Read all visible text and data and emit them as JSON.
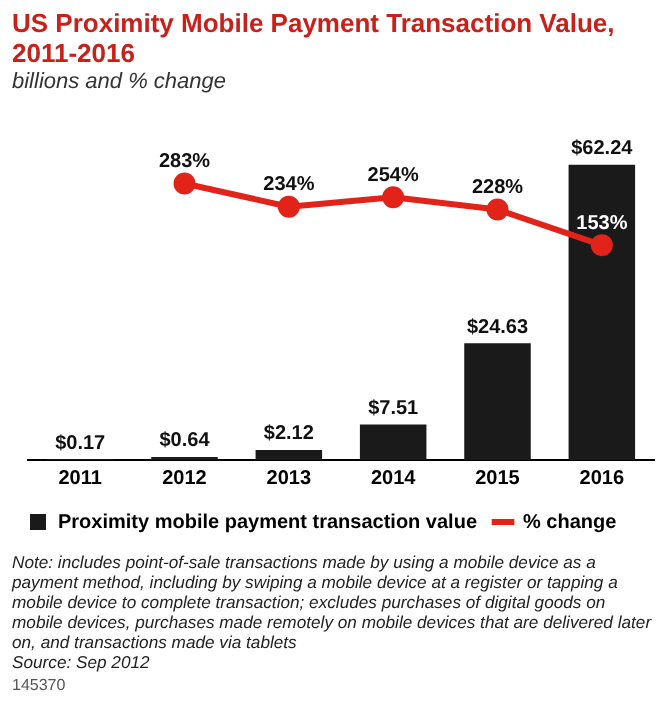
{
  "chart_data": {
    "type": "bar",
    "title": "US Proximity Mobile Payment Transaction Value, 2011-2016",
    "subtitle": "billions and % change",
    "categories": [
      "2011",
      "2012",
      "2013",
      "2014",
      "2015",
      "2016"
    ],
    "series": [
      {
        "name": "Proximity mobile payment transaction value",
        "type": "bar",
        "color": "#1a1a1a",
        "values": [
          0.17,
          0.64,
          2.12,
          7.51,
          24.63,
          62.24
        ],
        "value_labels": [
          "$0.17",
          "$0.64",
          "$2.12",
          "$7.51",
          "$24.63",
          "$62.24"
        ]
      },
      {
        "name": "% change",
        "type": "line",
        "axis": "y2",
        "color": "#e2231a",
        "values": [
          null,
          283,
          234,
          254,
          228,
          153
        ],
        "value_labels": [
          null,
          "283%",
          "234%",
          "254%",
          "228%",
          "153%"
        ]
      }
    ],
    "tick_labels": "x",
    "grid": false,
    "legend": "bottom",
    "marker": "circle",
    "annotations": [
      "Note: includes point-of-sale transactions made by using a mobile device as a payment method, including by swiping a mobile device at a register or tapping a mobile device to complete transaction; excludes purchases of digital goods on mobile devices, purchases made remotely on mobile devices that are delivered later on, and transactions made via tablets",
      "Source: Sep 2012",
      "145370"
    ]
  }
}
